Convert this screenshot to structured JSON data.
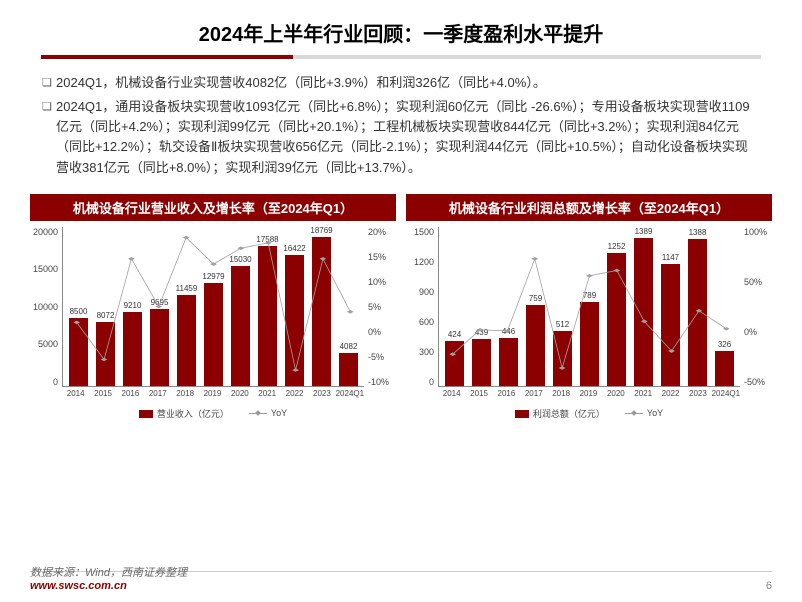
{
  "title": "2024年上半年行业回顾：一季度盈利水平提升",
  "bullets": [
    "2024Q1，机械设备行业实现营收4082亿（同比+3.9%）和利润326亿（同比+4.0%）。",
    "2024Q1，通用设备板块实现营收1093亿元（同比+6.8%）；实现利润60亿元（同比 -26.6%）；专用设备板块实现营收1109亿元（同比+4.2%）；实现利润99亿元（同比+20.1%）；工程机械板块实现营收844亿元（同比+3.2%）；实现利润84亿元（同比+12.2%）；轨交设备Ⅱ板块实现营收656亿元（同比-2.1%）；实现利润44亿元（同比+10.5%）；自动化设备板块实现营收381亿元（同比+8.0%）；实现利润39亿元（同比+13.7%）。"
  ],
  "chartLeft": {
    "title": "机械设备行业营业收入及增长率（至2024年Q1）",
    "categories": [
      "2014",
      "2015",
      "2016",
      "2017",
      "2018",
      "2019",
      "2020",
      "2021",
      "2022",
      "2023",
      "2024Q1"
    ],
    "bars": [
      8500,
      8072,
      9210,
      9695,
      11459,
      12979,
      15030,
      17588,
      16422,
      18769,
      4082
    ],
    "barLabels": [
      "8500",
      "8072",
      "9210",
      "9695",
      "11459",
      "12979",
      "15030",
      "17588",
      "16422",
      "18769",
      "4082"
    ],
    "yoy_pct": [
      2,
      -5,
      14,
      5,
      18,
      13,
      16,
      17,
      -7,
      14,
      4
    ],
    "yLeft": {
      "min": 0,
      "max": 20000,
      "ticks": [
        "20000",
        "15000",
        "10000",
        "5000",
        "0"
      ]
    },
    "yRight": {
      "min": -10,
      "max": 20,
      "ticks": [
        "20%",
        "15%",
        "10%",
        "5%",
        "0%",
        "-5%",
        "-10%"
      ]
    },
    "barColor": "#8b0000",
    "lineColor": "#a0a0a0",
    "legendBar": "营业收入（亿元）",
    "legendLine": "YoY"
  },
  "chartRight": {
    "title": "机械设备行业利润总额及增长率（至2024年Q1）",
    "categories": [
      "2014",
      "2015",
      "2016",
      "2017",
      "2018",
      "2019",
      "2020",
      "2021",
      "2022",
      "2023",
      "2024Q1"
    ],
    "bars": [
      424,
      439,
      446,
      759,
      512,
      789,
      1252,
      1389,
      1147,
      1388,
      326
    ],
    "barLabels": [
      "424",
      "439",
      "446",
      "759",
      "512",
      "789",
      "1252",
      "1389",
      "1147",
      "1388",
      "326"
    ],
    "yoy_pct": [
      -20,
      3,
      2,
      70,
      -33,
      54,
      59,
      11,
      -17,
      21,
      4
    ],
    "yLeft": {
      "min": 0,
      "max": 1500,
      "ticks": [
        "1500",
        "1200",
        "900",
        "600",
        "300",
        "0"
      ]
    },
    "yRight": {
      "min": -50,
      "max": 100,
      "ticks": [
        "100%",
        "50%",
        "0%",
        "-50%"
      ]
    },
    "barColor": "#8b0000",
    "lineColor": "#a0a0a0",
    "legendBar": "利润总额（亿元）",
    "legendLine": "YoY"
  },
  "footer": {
    "source": "数据来源：Wind，西南证券整理",
    "url": "www.swsc.com.cn",
    "page": "6"
  },
  "colors": {
    "titleUnderlineDark": "#8b0000",
    "titleUnderlineLight": "#d9d9d9",
    "background": "#ffffff"
  }
}
